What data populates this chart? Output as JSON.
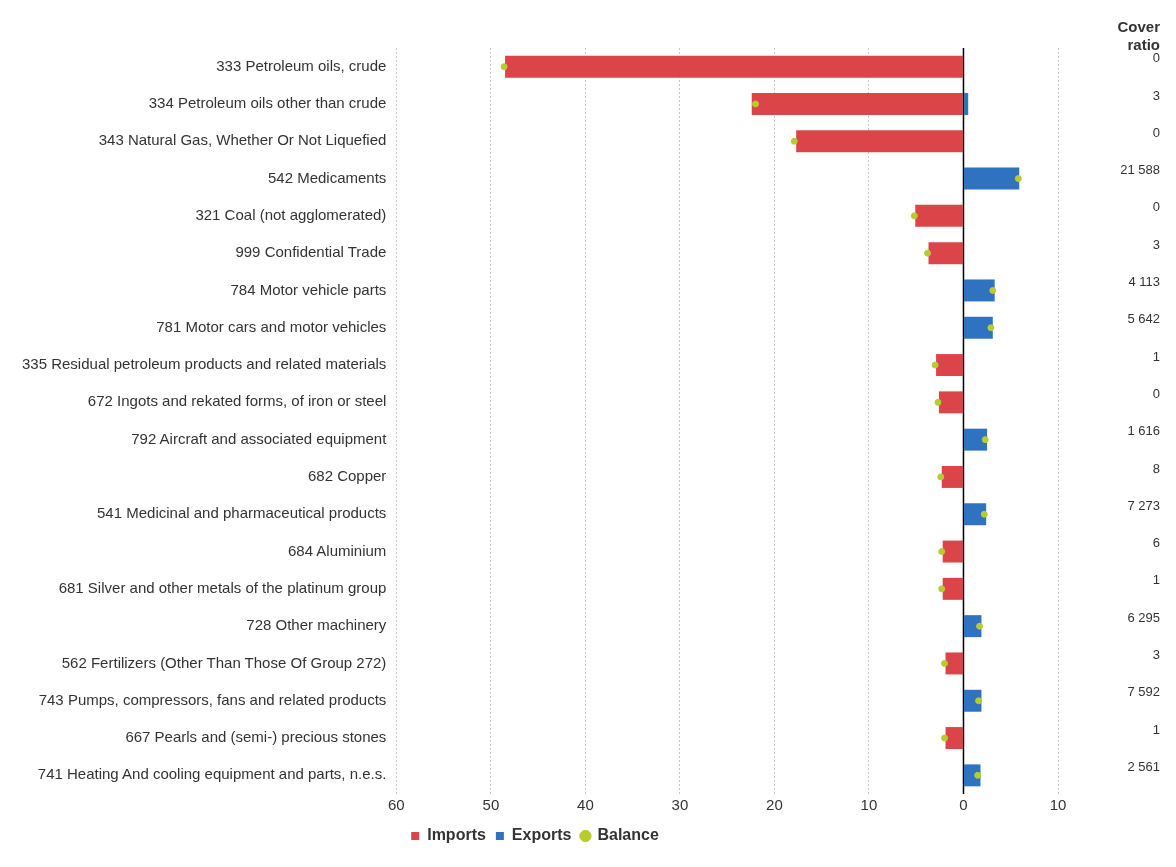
{
  "chart_data": {
    "type": "bar",
    "orientation": "horizontal",
    "stacked": true,
    "categories": [
      "333 Petroleum oils, crude",
      "334 Petroleum oils other than crude",
      "343 Natural Gas, Whether Or Not Liquefied",
      "542 Medicaments",
      "321 Coal (not agglomerated)",
      "999 Confidential Trade",
      "784 Motor vehicle parts",
      "781 Motor cars and motor vehicles",
      "335 Residual petroleum products and related materials",
      "672 Ingots and rekated forms, of iron or steel",
      "792 Aircraft and associated equipment",
      "682 Copper",
      "541 Medicinal and pharmaceutical products",
      "684 Aluminium",
      "681 Silver and other metals of the platinum group",
      "728 Other machinery",
      "562 Fertilizers (Other Than Those Of Group 272)",
      "743 Pumps, compressors, fans and related products",
      "667 Pearls and (semi-) precious stones",
      "741 Heating And cooling equipment and parts, n.e.s."
    ],
    "series": [
      {
        "name": "Imports",
        "type": "bar",
        "color": "#db4449",
        "values": [
          -48.5,
          -22.4,
          -17.7,
          null,
          -5.1,
          -3.7,
          null,
          null,
          -2.9,
          -2.6,
          null,
          -2.3,
          null,
          -2.2,
          -2.2,
          null,
          -1.9,
          null,
          -1.9,
          null
        ]
      },
      {
        "name": "Exports",
        "type": "bar",
        "color": "#2f72bf",
        "values": [
          null,
          0.5,
          null,
          5.9,
          null,
          null,
          3.3,
          3.1,
          null,
          null,
          2.5,
          null,
          2.4,
          null,
          null,
          1.9,
          null,
          1.9,
          null,
          1.8
        ]
      },
      {
        "name": "Balance",
        "type": "scatter",
        "color": "#b8cc2e",
        "values": [
          -48.6,
          -22.0,
          -17.9,
          5.8,
          -5.2,
          -3.8,
          3.1,
          2.9,
          -3.0,
          -2.7,
          2.3,
          -2.4,
          2.2,
          -2.3,
          -2.3,
          1.7,
          -2.0,
          1.6,
          -2.0,
          1.5
        ]
      }
    ],
    "xlim": [
      -60,
      10
    ],
    "ref_lines": [
      {
        "axis": "x",
        "value": 0,
        "color": "#000000"
      }
    ],
    "xticks": [
      {
        "value": -60,
        "label": "60"
      },
      {
        "value": -50,
        "label": "50"
      },
      {
        "value": -40,
        "label": "40"
      },
      {
        "value": -30,
        "label": "30"
      },
      {
        "value": -20,
        "label": "20"
      },
      {
        "value": -10,
        "label": "10"
      },
      0,
      10
    ],
    "grid": "x",
    "legend": "bottom",
    "marker": "circle",
    "annotations": [
      "Cover ratio",
      "0",
      "3",
      "0",
      "21 588",
      "0",
      "3",
      "4 113",
      "5 642",
      "1",
      "0",
      "1 616",
      "8",
      "7 273",
      "6",
      "1",
      "6 295",
      "3",
      "7 592",
      "1",
      "2 561"
    ]
  }
}
